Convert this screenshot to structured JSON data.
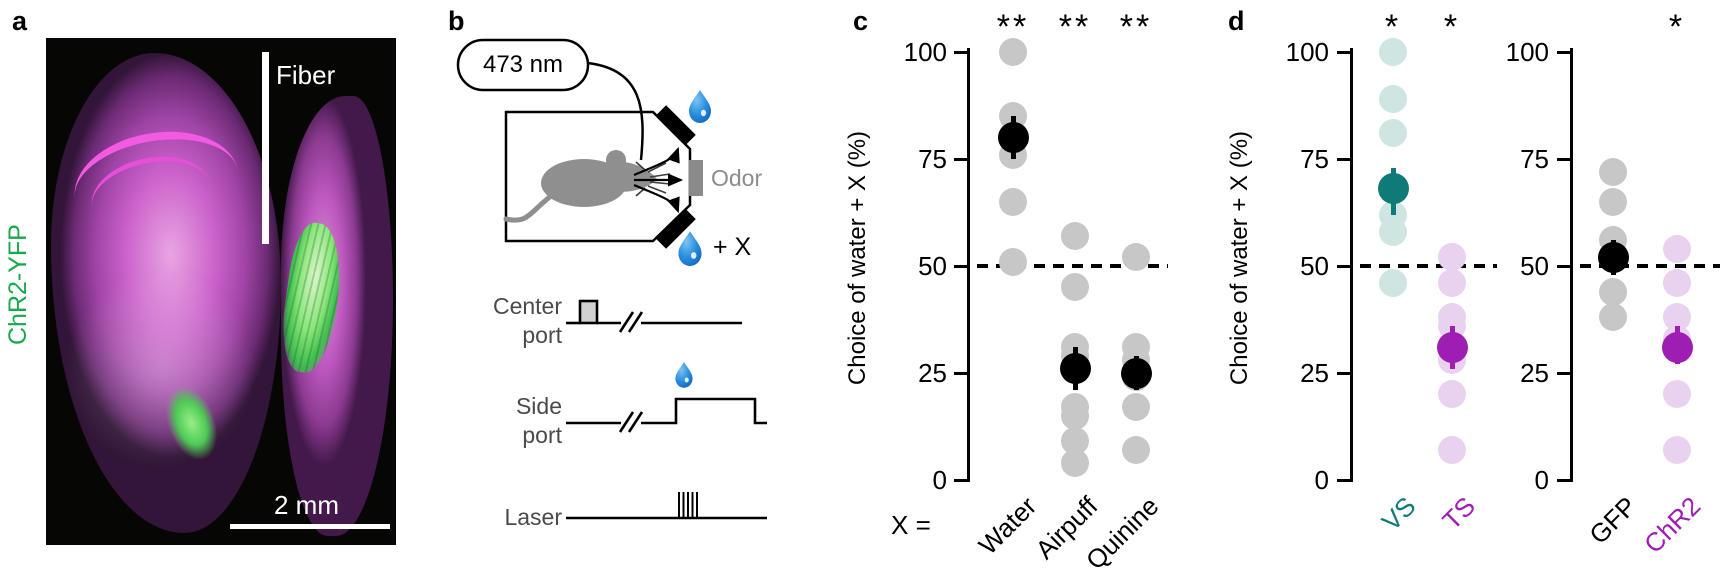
{
  "figure": {
    "panel_labels": {
      "a": "a",
      "b": "b",
      "c": "c",
      "d": "d"
    }
  },
  "panel_a": {
    "fiber_label": "Fiber",
    "stain_label": "ChR2-YFP",
    "scale_bar_label": "2 mm"
  },
  "panel_b": {
    "laser_wavelength": "473 nm",
    "odor_label": "Odor",
    "plus_x_label": "+ X",
    "center_port_label": "Center\nport",
    "side_port_label": "Side\nport",
    "laser_label": "Laser"
  },
  "colors": {
    "teal": "#0f7a78",
    "teal_light": "#cfe5e2",
    "purple": "#9e1db2",
    "purple_light": "#e8d2ef",
    "grey_point": "#c7c7c7",
    "green_label": "#19a84e",
    "drop_blue": "#2b8fe0"
  },
  "chart_data": [
    {
      "id": "c",
      "type": "scatter",
      "ylabel": "Choice of water + X (%)",
      "ylim": [
        0,
        100
      ],
      "yticks": [
        0,
        25,
        50,
        75,
        100
      ],
      "reference_line_y": 50,
      "x_prefix_label": "X =",
      "categories": [
        {
          "label": "Water",
          "label_color": "#000000",
          "significance": "**",
          "points": [
            100,
            85,
            76,
            65,
            51
          ],
          "mean": 80,
          "ci_low": 75,
          "ci_high": 85,
          "point_color": "#c7c7c7",
          "mean_color": "#000000"
        },
        {
          "label": "Airpuff",
          "label_color": "#000000",
          "significance": "**",
          "points": [
            57,
            45,
            31,
            29,
            17,
            15,
            9,
            4
          ],
          "mean": 26,
          "ci_low": 21,
          "ci_high": 31,
          "point_color": "#c7c7c7",
          "mean_color": "#000000"
        },
        {
          "label": "Quinine",
          "label_color": "#000000",
          "significance": "**",
          "points": [
            52,
            31,
            28,
            24,
            17,
            7
          ],
          "mean": 25,
          "ci_low": 21,
          "ci_high": 29,
          "point_color": "#c7c7c7",
          "mean_color": "#000000"
        }
      ]
    },
    {
      "id": "d_left",
      "type": "scatter",
      "ylabel": "Choice of water + X (%)",
      "ylim": [
        0,
        100
      ],
      "yticks": [
        0,
        25,
        50,
        75,
        100
      ],
      "reference_line_y": 50,
      "x_prefix_label": "",
      "categories": [
        {
          "label": "VS",
          "label_color": "#0f7a78",
          "significance": "*",
          "points": [
            100,
            89,
            81,
            62,
            58,
            46
          ],
          "mean": 68,
          "ci_low": 62,
          "ci_high": 73,
          "point_color": "#cfe5e2",
          "mean_color": "#0f7a78"
        },
        {
          "label": "TS",
          "label_color": "#9e1db2",
          "significance": "*",
          "points": [
            52,
            46,
            38,
            36,
            28,
            20,
            7
          ],
          "mean": 31,
          "ci_low": 26,
          "ci_high": 36,
          "point_color": "#e8d2ef",
          "mean_color": "#9e1db2"
        }
      ]
    },
    {
      "id": "d_right",
      "type": "scatter",
      "ylabel": "",
      "ylim": [
        0,
        100
      ],
      "yticks": [
        0,
        25,
        50,
        75,
        100
      ],
      "reference_line_y": 50,
      "x_prefix_label": "",
      "categories": [
        {
          "label": "GFP",
          "label_color": "#000000",
          "significance": "",
          "points": [
            72,
            65,
            56,
            44,
            38
          ],
          "mean": 52,
          "ci_low": 48,
          "ci_high": 56,
          "point_color": "#c7c7c7",
          "mean_color": "#000000"
        },
        {
          "label": "ChR2",
          "label_color": "#9e1db2",
          "significance": "*",
          "points": [
            54,
            46,
            38,
            33,
            20,
            7
          ],
          "mean": 31,
          "ci_low": 27,
          "ci_high": 36,
          "point_color": "#e8d2ef",
          "mean_color": "#9e1db2"
        }
      ]
    }
  ]
}
